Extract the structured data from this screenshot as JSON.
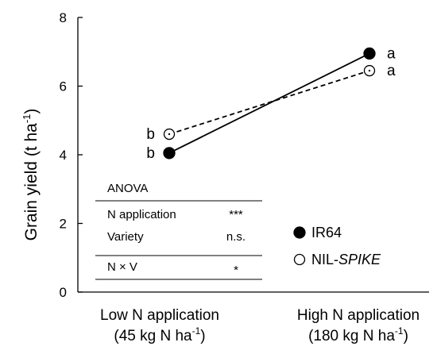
{
  "chart_data": {
    "type": "line",
    "categories": [
      {
        "line1": "Low N application",
        "line2_pre": "(45 kg N ha",
        "line2_sup": "-1",
        "line2_post": ")"
      },
      {
        "line1": "High  N application",
        "line2_pre": "(180 kg N ha",
        "line2_sup": "-1",
        "line2_post": ")"
      }
    ],
    "ylabel": {
      "pre": "Grain yield (t ha",
      "sup": "-1",
      "post": ")"
    },
    "ylim": [
      0,
      8
    ],
    "yticks": [
      0,
      2,
      4,
      6,
      8
    ],
    "grid": false,
    "series": [
      {
        "name": "IR64",
        "values": [
          4.05,
          6.95
        ],
        "marker": "filled-circle",
        "line": "solid",
        "letters": [
          "b",
          "a"
        ]
      },
      {
        "name_pre": "NIL-",
        "name_italic": "SPIKE",
        "values": [
          4.6,
          6.45
        ],
        "marker": "open-circle",
        "line": "dashed",
        "letters": [
          "b",
          "a"
        ]
      }
    ],
    "legend_position": "bottom-right",
    "anova": {
      "header": "ANOVA",
      "rows": [
        {
          "factor": "N application",
          "sig": "***"
        },
        {
          "factor": "Variety",
          "sig": "n.s."
        },
        {
          "factor": "N × V",
          "sig": "*"
        }
      ]
    }
  }
}
